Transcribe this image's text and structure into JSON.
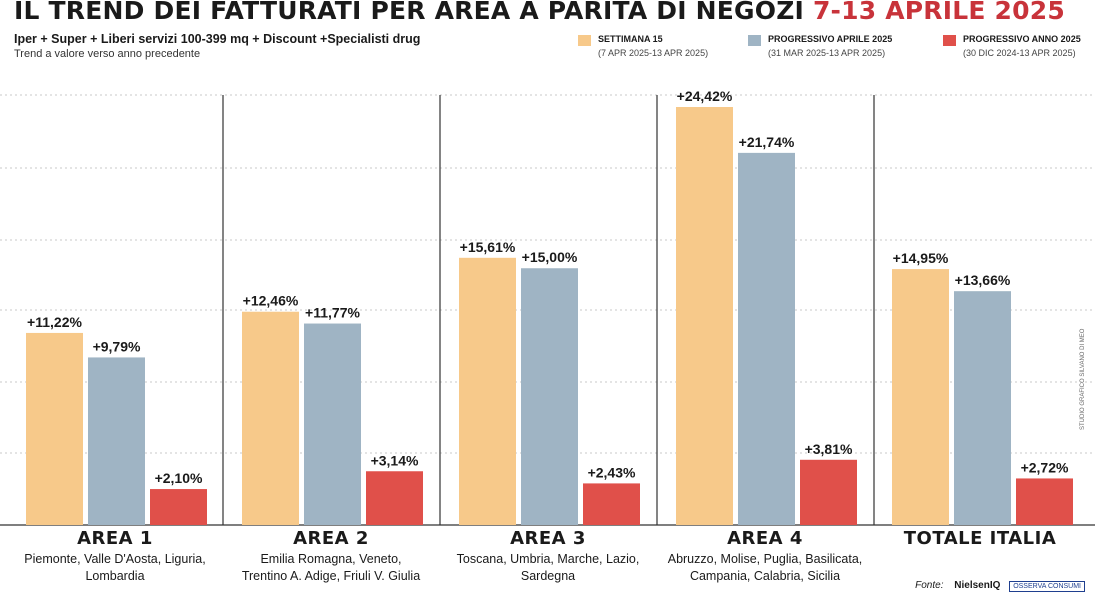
{
  "header": {
    "title_main": "IL TREND DEI FATTURATI PER AREA A PARITÀ DI NEGOZI",
    "title_accent": "7-13 APRILE 2025",
    "subtitle": "Iper + Super + Liberi servizi 100-399 mq + Discount +Specialisti drug",
    "note": "Trend a valore verso anno precedente"
  },
  "legend": [
    {
      "label": "SETTIMANA 15",
      "range": "(7 APR 2025-13 APR 2025)",
      "color": "#f7c98a"
    },
    {
      "label": "PROGRESSIVO APRILE 2025",
      "range": "(31 MAR 2025-13 APR 2025)",
      "color": "#9fb4c4"
    },
    {
      "label": "PROGRESSIVO ANNO 2025",
      "range": "(30 DIC 2024-13 APR 2025)",
      "color": "#e0504a"
    }
  ],
  "chart_data": {
    "type": "bar",
    "categories": [
      "AREA 1",
      "AREA 2",
      "AREA 3",
      "AREA 4",
      "TOTALE ITALIA"
    ],
    "regions": [
      [
        "Piemonte, Valle D'Aosta, Liguria,",
        "Lombardia"
      ],
      [
        "Emilia Romagna, Veneto,",
        "Trentino A. Adige, Friuli V. Giulia"
      ],
      [
        "Toscana, Umbria, Marche, Lazio,",
        "Sardegna"
      ],
      [
        "Abruzzo, Molise, Puglia, Basilicata,",
        "Campania, Calabria, Sicilia"
      ],
      []
    ],
    "series": [
      {
        "name": "SETTIMANA 15",
        "color": "#f7c98a",
        "values": [
          11.22,
          12.46,
          15.61,
          24.42,
          14.95
        ],
        "labels": [
          "+11,22%",
          "+12,46%",
          "+15,61%",
          "+24,42%",
          "+14,95%"
        ]
      },
      {
        "name": "PROGRESSIVO APRILE 2025",
        "color": "#9fb4c4",
        "values": [
          9.79,
          11.77,
          15.0,
          21.74,
          13.66
        ],
        "labels": [
          "+9,79%",
          "+11,77%",
          "+15,00%",
          "+21,74%",
          "+13,66%"
        ]
      },
      {
        "name": "PROGRESSIVO ANNO 2025",
        "color": "#e0504a",
        "values": [
          2.1,
          3.14,
          2.43,
          3.81,
          2.72
        ],
        "labels": [
          "+2,10%",
          "+3,14%",
          "+2,43%",
          "+3,81%",
          "+2,72%"
        ]
      }
    ],
    "ylim": [
      0,
      25
    ],
    "grid": true
  },
  "source": {
    "fonte": "Fonte:",
    "logo1": "NielsenIQ",
    "logo2": "OSSERVA CONSUMI"
  },
  "credit": "STUDIO GRAFICO SILVANO DI MEO"
}
